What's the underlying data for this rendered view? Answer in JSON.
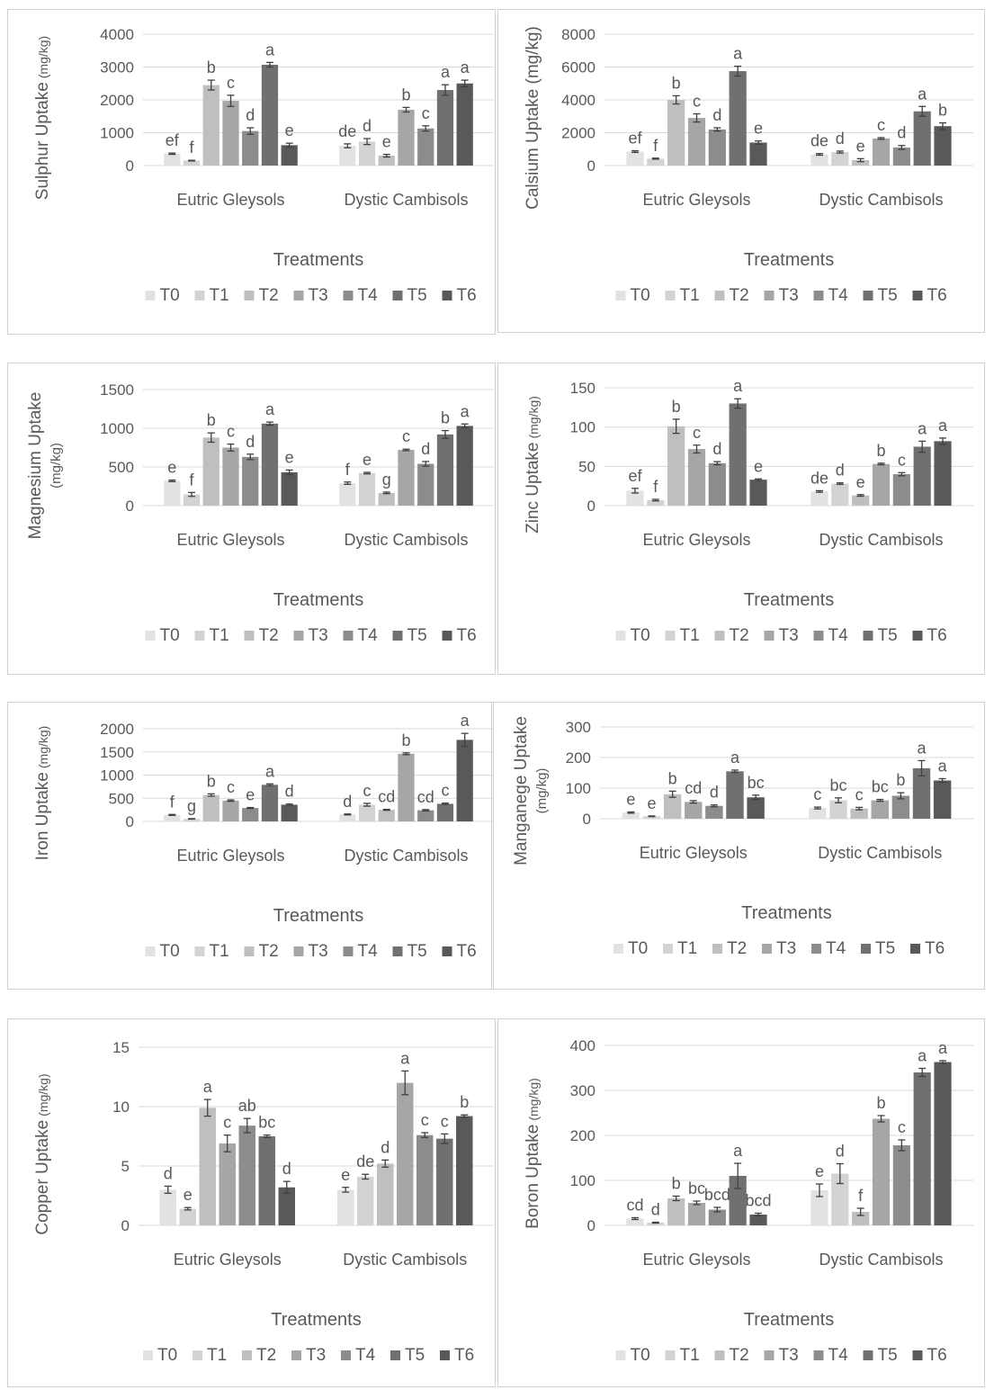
{
  "chart_data": [
    {
      "type": "bar",
      "ylabel_main": "Sulphur Uptake",
      "ylabel_unit": "(mg/kg)",
      "xlabel": "Treatments",
      "categories": [
        "Eutric Gleysols",
        "Dystic Cambisols"
      ],
      "ylim": [
        0,
        4000
      ],
      "yticks": [
        0,
        1000,
        2000,
        3000,
        4000
      ],
      "series": [
        {
          "name": "T0",
          "values": [
            360,
            600
          ],
          "errors": [
            20,
            60
          ],
          "letters": [
            "ef",
            "de"
          ]
        },
        {
          "name": "T1",
          "values": [
            150,
            730
          ],
          "errors": [
            10,
            90
          ],
          "letters": [
            "f",
            "d"
          ]
        },
        {
          "name": "T2",
          "values": [
            2450,
            300
          ],
          "errors": [
            150,
            40
          ],
          "letters": [
            "b",
            "e"
          ]
        },
        {
          "name": "T3",
          "values": [
            1970,
            1700
          ],
          "errors": [
            170,
            70
          ],
          "letters": [
            "c",
            "b"
          ]
        },
        {
          "name": "T4",
          "values": [
            1050,
            1130
          ],
          "errors": [
            100,
            80
          ],
          "letters": [
            "d",
            "c"
          ]
        },
        {
          "name": "T5",
          "values": [
            3070,
            2300
          ],
          "errors": [
            70,
            160
          ],
          "letters": [
            "a",
            "a"
          ]
        },
        {
          "name": "T6",
          "values": [
            620,
            2500
          ],
          "errors": [
            60,
            100
          ],
          "letters": [
            "e",
            "a"
          ]
        }
      ]
    },
    {
      "type": "bar",
      "ylabel_main": "Calsium Uptake (mg/kg)",
      "ylabel_unit": "",
      "xlabel": "Treatments",
      "categories": [
        "Eutric Gleysols",
        "Dystic Cambisols"
      ],
      "ylim": [
        0,
        8000
      ],
      "yticks": [
        0,
        2000,
        4000,
        6000,
        8000
      ],
      "series": [
        {
          "name": "T0",
          "values": [
            850,
            680
          ],
          "errors": [
            50,
            50
          ],
          "letters": [
            "ef",
            "de"
          ]
        },
        {
          "name": "T1",
          "values": [
            420,
            820
          ],
          "errors": [
            30,
            60
          ],
          "letters": [
            "f",
            "d"
          ]
        },
        {
          "name": "T2",
          "values": [
            4000,
            330
          ],
          "errors": [
            250,
            90
          ],
          "letters": [
            "b",
            "e"
          ]
        },
        {
          "name": "T3",
          "values": [
            2900,
            1650
          ],
          "errors": [
            250,
            50
          ],
          "letters": [
            "c",
            "c"
          ]
        },
        {
          "name": "T4",
          "values": [
            2200,
            1100
          ],
          "errors": [
            100,
            120
          ],
          "letters": [
            "d",
            "d"
          ]
        },
        {
          "name": "T5",
          "values": [
            5750,
            3300
          ],
          "errors": [
            300,
            300
          ],
          "letters": [
            "a",
            "a"
          ]
        },
        {
          "name": "T6",
          "values": [
            1400,
            2400
          ],
          "errors": [
            100,
            200
          ],
          "letters": [
            "e",
            "b"
          ]
        }
      ]
    },
    {
      "type": "bar",
      "ylabel_main": "Magnesium Uptake",
      "ylabel_unit": "(mg/kg)",
      "xlabel": "Treatments",
      "categories": [
        "Eutric Gleysols",
        "Dystic Cambisols"
      ],
      "ylim": [
        0,
        1500
      ],
      "yticks": [
        0,
        500,
        1000,
        1500
      ],
      "series": [
        {
          "name": "T0",
          "values": [
            320,
            290
          ],
          "errors": [
            10,
            15
          ],
          "letters": [
            "e",
            "f"
          ]
        },
        {
          "name": "T1",
          "values": [
            145,
            420
          ],
          "errors": [
            25,
            10
          ],
          "letters": [
            "f",
            "e"
          ]
        },
        {
          "name": "T2",
          "values": [
            880,
            165
          ],
          "errors": [
            60,
            10
          ],
          "letters": [
            "b",
            "g"
          ]
        },
        {
          "name": "T3",
          "values": [
            750,
            720
          ],
          "errors": [
            45,
            10
          ],
          "letters": [
            "c",
            "c"
          ]
        },
        {
          "name": "T4",
          "values": [
            630,
            540
          ],
          "errors": [
            35,
            30
          ],
          "letters": [
            "d",
            "d"
          ]
        },
        {
          "name": "T5",
          "values": [
            1060,
            920
          ],
          "errors": [
            20,
            50
          ],
          "letters": [
            "a",
            "b"
          ]
        },
        {
          "name": "T6",
          "values": [
            430,
            1030
          ],
          "errors": [
            30,
            25
          ],
          "letters": [
            "e",
            "a"
          ]
        }
      ]
    },
    {
      "type": "bar",
      "ylabel_main": "Zinc Uptake",
      "ylabel_unit": "(mg/kg)",
      "xlabel": "Treatments",
      "categories": [
        "Eutric Gleysols",
        "Dystic Cambisols"
      ],
      "ylim": [
        0,
        150
      ],
      "yticks": [
        0,
        50,
        100,
        150
      ],
      "series": [
        {
          "name": "T0",
          "values": [
            19,
            18
          ],
          "errors": [
            3,
            1
          ],
          "letters": [
            "ef",
            "de"
          ]
        },
        {
          "name": "T1",
          "values": [
            7,
            28
          ],
          "errors": [
            1,
            1
          ],
          "letters": [
            "f",
            "d"
          ]
        },
        {
          "name": "T2",
          "values": [
            101,
            13
          ],
          "errors": [
            9,
            1
          ],
          "letters": [
            "b",
            "e"
          ]
        },
        {
          "name": "T3",
          "values": [
            72,
            53
          ],
          "errors": [
            5,
            1
          ],
          "letters": [
            "c",
            "b"
          ]
        },
        {
          "name": "T4",
          "values": [
            54,
            40
          ],
          "errors": [
            2,
            2
          ],
          "letters": [
            "d",
            "c"
          ]
        },
        {
          "name": "T5",
          "values": [
            130,
            75
          ],
          "errors": [
            6,
            7
          ],
          "letters": [
            "a",
            "a"
          ]
        },
        {
          "name": "T6",
          "values": [
            33,
            82
          ],
          "errors": [
            1,
            4
          ],
          "letters": [
            "e",
            "a"
          ]
        }
      ]
    },
    {
      "type": "bar",
      "ylabel_main": "Iron Uptake",
      "ylabel_unit": "(mg/kg)",
      "xlabel": "Treatments",
      "categories": [
        "Eutric Gleysols",
        "Dystic Cambisols"
      ],
      "ylim": [
        0,
        2000
      ],
      "yticks": [
        0,
        500,
        1000,
        1500,
        2000
      ],
      "series": [
        {
          "name": "T0",
          "values": [
            140,
            150
          ],
          "errors": [
            10,
            10
          ],
          "letters": [
            "f",
            "d"
          ]
        },
        {
          "name": "T1",
          "values": [
            55,
            360
          ],
          "errors": [
            5,
            30
          ],
          "letters": [
            "g",
            "c"
          ]
        },
        {
          "name": "T2",
          "values": [
            570,
            250
          ],
          "errors": [
            25,
            10
          ],
          "letters": [
            "b",
            "cd"
          ]
        },
        {
          "name": "T3",
          "values": [
            450,
            1460
          ],
          "errors": [
            15,
            20
          ],
          "letters": [
            "c",
            "b"
          ]
        },
        {
          "name": "T4",
          "values": [
            290,
            240
          ],
          "errors": [
            10,
            15
          ],
          "letters": [
            "e",
            "cd"
          ]
        },
        {
          "name": "T5",
          "values": [
            790,
            380
          ],
          "errors": [
            20,
            15
          ],
          "letters": [
            "a",
            "c"
          ]
        },
        {
          "name": "T6",
          "values": [
            360,
            1760
          ],
          "errors": [
            15,
            140
          ],
          "letters": [
            "d",
            "a"
          ]
        }
      ]
    },
    {
      "type": "bar",
      "ylabel_main": "Manganege Uptake",
      "ylabel_unit": "(mg/kg)",
      "xlabel": "Treatments",
      "categories": [
        "Eutric Gleysols",
        "Dystic Cambisols"
      ],
      "ylim": [
        0,
        300
      ],
      "yticks": [
        0,
        100,
        200,
        300
      ],
      "series": [
        {
          "name": "T0",
          "values": [
            20,
            35
          ],
          "errors": [
            2,
            3
          ],
          "letters": [
            "e",
            "c"
          ]
        },
        {
          "name": "T1",
          "values": [
            8,
            60
          ],
          "errors": [
            1,
            8
          ],
          "letters": [
            "e",
            "bc"
          ]
        },
        {
          "name": "T2",
          "values": [
            80,
            33
          ],
          "errors": [
            10,
            4
          ],
          "letters": [
            "b",
            "c"
          ]
        },
        {
          "name": "T3",
          "values": [
            55,
            60
          ],
          "errors": [
            4,
            3
          ],
          "letters": [
            "cd",
            "bc"
          ]
        },
        {
          "name": "T4",
          "values": [
            42,
            75
          ],
          "errors": [
            3,
            10
          ],
          "letters": [
            "d",
            "b"
          ]
        },
        {
          "name": "T5",
          "values": [
            155,
            165
          ],
          "errors": [
            4,
            25
          ],
          "letters": [
            "a",
            "a"
          ]
        },
        {
          "name": "T6",
          "values": [
            70,
            125
          ],
          "errors": [
            7,
            6
          ],
          "letters": [
            "bc",
            "a"
          ]
        }
      ]
    },
    {
      "type": "bar",
      "ylabel_main": "Copper Uptake",
      "ylabel_unit": "(mg/kg)",
      "xlabel": "Treatments",
      "categories": [
        "Eutric Gleysols",
        "Dystic Cambisols"
      ],
      "ylim": [
        0,
        15
      ],
      "yticks": [
        0,
        5,
        10,
        15
      ],
      "series": [
        {
          "name": "T0",
          "values": [
            3.0,
            3.0
          ],
          "errors": [
            0.3,
            0.2
          ],
          "letters": [
            "d",
            "e"
          ]
        },
        {
          "name": "T1",
          "values": [
            1.4,
            4.1
          ],
          "errors": [
            0.1,
            0.2
          ],
          "letters": [
            "e",
            "de"
          ]
        },
        {
          "name": "T2",
          "values": [
            9.9,
            5.2
          ],
          "errors": [
            0.7,
            0.3
          ],
          "letters": [
            "a",
            "d"
          ]
        },
        {
          "name": "T3",
          "values": [
            6.9,
            12.0
          ],
          "errors": [
            0.7,
            1.0
          ],
          "letters": [
            "c",
            "a"
          ]
        },
        {
          "name": "T4",
          "values": [
            8.4,
            7.6
          ],
          "errors": [
            0.6,
            0.2
          ],
          "letters": [
            "ab",
            "c"
          ]
        },
        {
          "name": "T5",
          "values": [
            7.5,
            7.3
          ],
          "errors": [
            0.1,
            0.4
          ],
          "letters": [
            "bc",
            "c"
          ]
        },
        {
          "name": "T6",
          "values": [
            3.2,
            9.2
          ],
          "errors": [
            0.5,
            0.1
          ],
          "letters": [
            "d",
            "b"
          ]
        }
      ]
    },
    {
      "type": "bar",
      "ylabel_main": "Boron Uptake",
      "ylabel_unit": "(mg/kg)",
      "xlabel": "Treatments",
      "categories": [
        "Eutric Gleysols",
        "Dystic Cambisols"
      ],
      "ylim": [
        0,
        400
      ],
      "yticks": [
        0,
        100,
        200,
        300,
        400
      ],
      "series": [
        {
          "name": "T0",
          "values": [
            15,
            78
          ],
          "errors": [
            2,
            14
          ],
          "letters": [
            "cd",
            "e"
          ]
        },
        {
          "name": "T1",
          "values": [
            6,
            115
          ],
          "errors": [
            1,
            22
          ],
          "letters": [
            "d",
            "d"
          ]
        },
        {
          "name": "T2",
          "values": [
            60,
            30
          ],
          "errors": [
            5,
            8
          ],
          "letters": [
            "b",
            "f"
          ]
        },
        {
          "name": "T3",
          "values": [
            50,
            237
          ],
          "errors": [
            4,
            7
          ],
          "letters": [
            "bc",
            "b"
          ]
        },
        {
          "name": "T4",
          "values": [
            35,
            178
          ],
          "errors": [
            5,
            12
          ],
          "letters": [
            "bcd",
            "c"
          ]
        },
        {
          "name": "T5",
          "values": [
            110,
            340
          ],
          "errors": [
            28,
            9
          ],
          "letters": [
            "a",
            "a"
          ]
        },
        {
          "name": "T6",
          "values": [
            24,
            363
          ],
          "errors": [
            3,
            3
          ],
          "letters": [
            "bcd",
            "a"
          ]
        }
      ]
    }
  ],
  "colors": {
    "series": [
      "#e2e2e2",
      "#d3d3d3",
      "#bfbfbf",
      "#a6a6a6",
      "#8c8c8c",
      "#707070",
      "#595959"
    ],
    "text": "#595959",
    "grid": "#d9d9d9",
    "panel_border": "#d0d0d0",
    "error_bar": "#404040"
  }
}
